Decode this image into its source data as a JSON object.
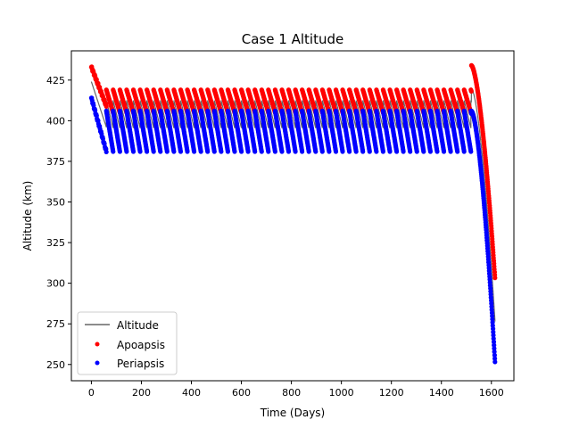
{
  "chart_data": {
    "type": "scatter",
    "title": "Case 1 Altitude",
    "xlabel": "Time (Days)",
    "ylabel": "Altitude (km)",
    "xlim": [
      -80,
      1690
    ],
    "ylim": [
      240,
      443
    ],
    "xticks": [
      0,
      200,
      400,
      600,
      800,
      1000,
      1200,
      1400,
      1600
    ],
    "yticks": [
      250,
      275,
      300,
      325,
      350,
      375,
      400,
      425
    ],
    "grid": false,
    "legend_position": "lower-left",
    "legend": [
      "Altitude",
      "Apoapsis",
      "Periapsis"
    ],
    "colors": {
      "altitude": "#666666",
      "apoapsis": "#ff0000",
      "periapsis": "#0000ff"
    },
    "series": [
      {
        "name": "Altitude",
        "style": "line",
        "note_shape": "drop-and-reboost sawtooth with apoapsis-periapsis band",
        "x": [
          0,
          30,
          60,
          60,
          1520,
          1560,
          1590,
          1610
        ],
        "y": [
          433,
          412,
          395,
          418,
          433,
          395,
          330,
          250
        ]
      },
      {
        "name": "Apoapsis",
        "style": "marker",
        "x": [
          0,
          20,
          50,
          60,
          200,
          400,
          600,
          800,
          1000,
          1200,
          1400,
          1500,
          1525,
          1540,
          1560,
          1580,
          1600,
          1615
        ],
        "y": [
          433,
          425,
          412,
          419,
          419,
          419,
          419,
          419,
          419,
          419,
          419,
          419,
          434,
          425,
          400,
          360,
          320,
          300
        ]
      },
      {
        "name": "Periapsis",
        "style": "marker",
        "x": [
          0,
          20,
          50,
          60,
          200,
          400,
          600,
          800,
          1000,
          1200,
          1400,
          1500,
          1525,
          1540,
          1560,
          1580,
          1600,
          1612
        ],
        "y": [
          414,
          405,
          385,
          381,
          381,
          381,
          381,
          381,
          381,
          381,
          381,
          381,
          395,
          380,
          350,
          320,
          280,
          250
        ]
      }
    ],
    "cycle": {
      "period_days": 27,
      "start": 60,
      "end": 1520,
      "band_apo": [
        405,
        419
      ],
      "band_peri": [
        381,
        406
      ]
    }
  }
}
